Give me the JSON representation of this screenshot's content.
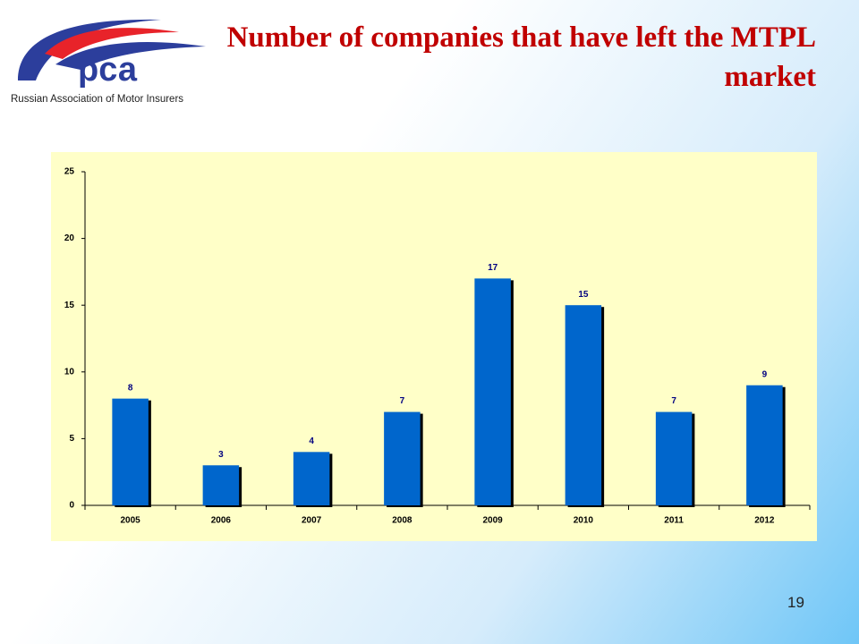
{
  "header": {
    "logo_text": "рса",
    "organization": "Russian Association of Motor Insurers",
    "page_number": "19"
  },
  "chart_data": {
    "type": "bar",
    "title": "Number of companies that have left the MTPL market",
    "categories": [
      "2005",
      "2006",
      "2007",
      "2008",
      "2009",
      "2010",
      "2011",
      "2012"
    ],
    "values": [
      8,
      3,
      4,
      7,
      17,
      15,
      7,
      9
    ],
    "color": "#0066cc",
    "ylim": [
      0,
      25
    ],
    "yticks": [
      0,
      5,
      10,
      15,
      20,
      25
    ],
    "grid": false,
    "data_labels": true
  }
}
